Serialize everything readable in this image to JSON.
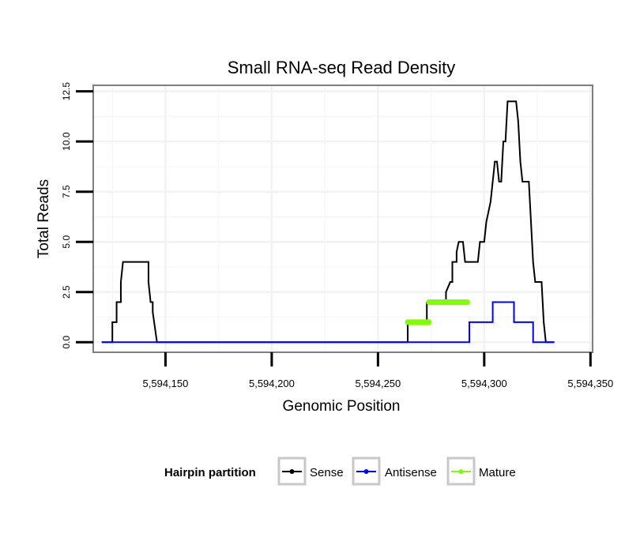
{
  "chart_data": {
    "type": "line",
    "title": "Small RNA-seq Read Density",
    "xlabel": "Genomic Position",
    "ylabel": "Total Reads",
    "xlim": [
      5594116,
      5594351
    ],
    "ylim": [
      -0.5,
      12.8
    ],
    "x_ticks": [
      5594150,
      5594200,
      5594250,
      5594300,
      5594350
    ],
    "x_tick_labels": [
      "5,594,150",
      "5,594,200",
      "5,594,250",
      "5,594,300",
      "5,594,350"
    ],
    "y_ticks": [
      0,
      2.5,
      5,
      7.5,
      10,
      12.5
    ],
    "y_tick_labels": [
      "0.0",
      "2.5",
      "5.0",
      "7.5",
      "10.0",
      "12.5"
    ],
    "grid": true,
    "legend": {
      "title": "Hairpin partition",
      "position": "bottom",
      "entries": [
        "Sense",
        "Antisense",
        "Mature"
      ]
    },
    "series": [
      {
        "name": "Sense",
        "color": "#000000",
        "points": [
          [
            5594120,
            0
          ],
          [
            5594125,
            0
          ],
          [
            5594125,
            1
          ],
          [
            5594127,
            1
          ],
          [
            5594127,
            2
          ],
          [
            5594129,
            2
          ],
          [
            5594129,
            3
          ],
          [
            5594130,
            4
          ],
          [
            5594142,
            4
          ],
          [
            5594142,
            3
          ],
          [
            5594143,
            2
          ],
          [
            5594144,
            2
          ],
          [
            5594144,
            1.5
          ],
          [
            5594146,
            0
          ],
          [
            5594264,
            0
          ],
          [
            5594264,
            1
          ],
          [
            5594273,
            1
          ],
          [
            5594273,
            2
          ],
          [
            5594282,
            2
          ],
          [
            5594282,
            2.5
          ],
          [
            5594284,
            3
          ],
          [
            5594285,
            3
          ],
          [
            5594285,
            4
          ],
          [
            5594287,
            4
          ],
          [
            5594287,
            4.5
          ],
          [
            5594288,
            5
          ],
          [
            5594290,
            5
          ],
          [
            5594291,
            4
          ],
          [
            5594297,
            4
          ],
          [
            5594298,
            5
          ],
          [
            5594300,
            5
          ],
          [
            5594301,
            6
          ],
          [
            5594303,
            7
          ],
          [
            5594304,
            8
          ],
          [
            5594305,
            9
          ],
          [
            5594306,
            9
          ],
          [
            5594307,
            8
          ],
          [
            5594308,
            8
          ],
          [
            5594309,
            10
          ],
          [
            5594310,
            10
          ],
          [
            5594311,
            12
          ],
          [
            5594315,
            12
          ],
          [
            5594316,
            11
          ],
          [
            5594317,
            9
          ],
          [
            5594318,
            8
          ],
          [
            5594321,
            8
          ],
          [
            5594322,
            6
          ],
          [
            5594323,
            4
          ],
          [
            5594324,
            3
          ],
          [
            5594327,
            3
          ],
          [
            5594328,
            1
          ],
          [
            5594329,
            0
          ],
          [
            5594333,
            0
          ]
        ]
      },
      {
        "name": "Antisense",
        "color": "#0000ff",
        "points": [
          [
            5594120,
            0
          ],
          [
            5594293,
            0
          ],
          [
            5594293,
            1
          ],
          [
            5594304,
            1
          ],
          [
            5594304,
            2
          ],
          [
            5594314,
            2
          ],
          [
            5594314,
            1
          ],
          [
            5594323,
            1
          ],
          [
            5594323,
            0
          ],
          [
            5594333,
            0
          ]
        ]
      },
      {
        "name": "Mature",
        "color": "#7fff00",
        "segments": [
          {
            "x": [
              5594264,
              5594274
            ],
            "y": 1
          },
          {
            "x": [
              5594274,
              5594292
            ],
            "y": 2
          }
        ]
      }
    ]
  }
}
